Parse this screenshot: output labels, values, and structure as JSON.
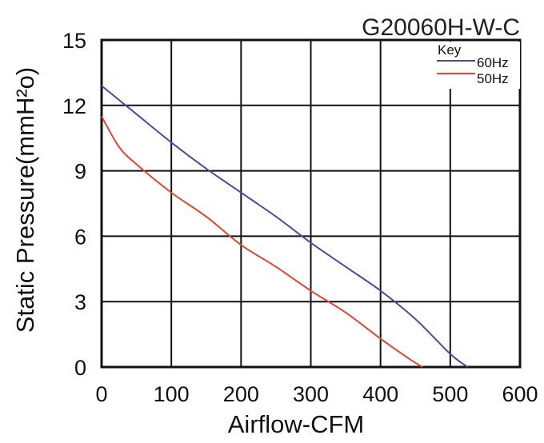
{
  "chart_data": {
    "type": "line",
    "title": "G20060H-W-C",
    "xlabel": "Airflow-CFM",
    "ylabel": "Static Pressure(mmH²o)",
    "xlim": [
      0,
      600
    ],
    "ylim": [
      0,
      15
    ],
    "xticks": [
      0,
      100,
      200,
      300,
      400,
      500,
      600
    ],
    "yticks": [
      0,
      3,
      6,
      9,
      12,
      15
    ],
    "grid": true,
    "legend": {
      "title": "Key",
      "placement": "top-right",
      "entries": [
        "60Hz",
        "50Hz"
      ]
    },
    "series": [
      {
        "name": "60Hz",
        "color": "#4b4aa6",
        "x": [
          0,
          50,
          100,
          150,
          200,
          250,
          300,
          350,
          400,
          450,
          500,
          525
        ],
        "y": [
          12.9,
          11.6,
          10.3,
          9.1,
          8.0,
          6.9,
          5.7,
          4.6,
          3.5,
          2.2,
          0.6,
          0.0
        ]
      },
      {
        "name": "50Hz",
        "color": "#e8432e",
        "x": [
          0,
          25,
          50,
          100,
          150,
          200,
          250,
          300,
          350,
          400,
          440,
          460
        ],
        "y": [
          11.5,
          10.1,
          9.3,
          8.0,
          6.9,
          5.6,
          4.6,
          3.5,
          2.5,
          1.3,
          0.4,
          0.0
        ]
      }
    ]
  }
}
